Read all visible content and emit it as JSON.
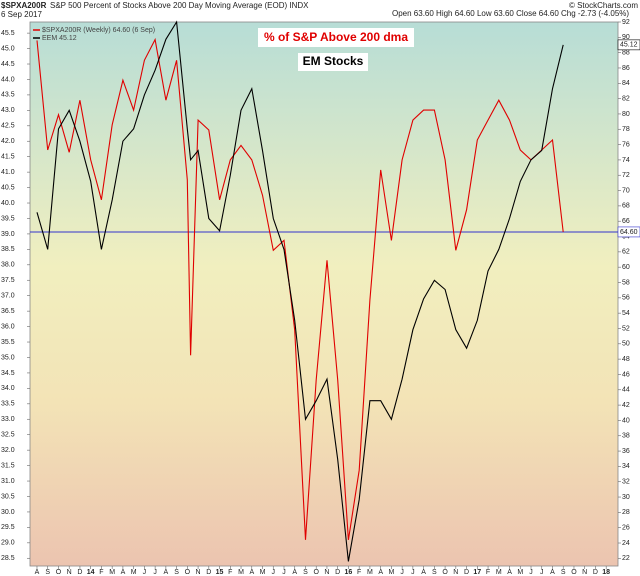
{
  "chart_data": {
    "type": "line",
    "symbol": "$SPXA200R",
    "title": "S&P 500 Percent of Stocks Above 200 Day Moving Average (EOD) INDX",
    "date": "6 Sep 2017",
    "ohlc": "Open 63.60  High 64.60  Low 63.60  Close 64.60  Chg -2.73 (-4.05%)",
    "credit": "© StockCharts.com",
    "annotations": [
      "% of S&P Above 200 dma",
      "EM Stocks"
    ],
    "xlim": [
      -0.65,
      54.1
    ],
    "xticks": [
      {
        "value": 0,
        "label": "A"
      },
      {
        "value": 1,
        "label": "S"
      },
      {
        "value": 2,
        "label": "O"
      },
      {
        "value": 3,
        "label": "N"
      },
      {
        "value": 4,
        "label": "D"
      },
      {
        "value": 5,
        "label": "14"
      },
      {
        "value": 6,
        "label": "F"
      },
      {
        "value": 7,
        "label": "M"
      },
      {
        "value": 8,
        "label": "A"
      },
      {
        "value": 9,
        "label": "M"
      },
      {
        "value": 10,
        "label": "J"
      },
      {
        "value": 11,
        "label": "J"
      },
      {
        "value": 12,
        "label": "A"
      },
      {
        "value": 13,
        "label": "S"
      },
      {
        "value": 14,
        "label": "O"
      },
      {
        "value": 15,
        "label": "N"
      },
      {
        "value": 16,
        "label": "D"
      },
      {
        "value": 17,
        "label": "15"
      },
      {
        "value": 18,
        "label": "F"
      },
      {
        "value": 19,
        "label": "M"
      },
      {
        "value": 20,
        "label": "A"
      },
      {
        "value": 21,
        "label": "M"
      },
      {
        "value": 22,
        "label": "J"
      },
      {
        "value": 23,
        "label": "J"
      },
      {
        "value": 24,
        "label": "A"
      },
      {
        "value": 25,
        "label": "S"
      },
      {
        "value": 26,
        "label": "O"
      },
      {
        "value": 27,
        "label": "N"
      },
      {
        "value": 28,
        "label": "D"
      },
      {
        "value": 29,
        "label": "16"
      },
      {
        "value": 30,
        "label": "F"
      },
      {
        "value": 31,
        "label": "M"
      },
      {
        "value": 32,
        "label": "A"
      },
      {
        "value": 33,
        "label": "M"
      },
      {
        "value": 34,
        "label": "J"
      },
      {
        "value": 35,
        "label": "J"
      },
      {
        "value": 36,
        "label": "A"
      },
      {
        "value": 37,
        "label": "S"
      },
      {
        "value": 38,
        "label": "O"
      },
      {
        "value": 39,
        "label": "N"
      },
      {
        "value": 40,
        "label": "D"
      },
      {
        "value": 41,
        "label": "17"
      },
      {
        "value": 42,
        "label": "F"
      },
      {
        "value": 43,
        "label": "M"
      },
      {
        "value": 44,
        "label": "A"
      },
      {
        "value": 45,
        "label": "M"
      },
      {
        "value": 46,
        "label": "J"
      },
      {
        "value": 47,
        "label": "J"
      },
      {
        "value": 48,
        "label": "A"
      },
      {
        "value": 49,
        "label": "S"
      },
      {
        "value": 50,
        "label": "O"
      },
      {
        "value": 51,
        "label": "N"
      },
      {
        "value": 52,
        "label": "D"
      },
      {
        "value": 53,
        "label": "18"
      }
    ],
    "ylim": [
      28.25,
      45.86
    ],
    "yticks": [
      28.5,
      {
        "value": 29,
        "label": "29.0"
      },
      29.5,
      {
        "value": 30,
        "label": "30.0"
      },
      30.5,
      {
        "value": 31,
        "label": "31.0"
      },
      31.5,
      {
        "value": 32,
        "label": "32.0"
      },
      32.5,
      {
        "value": 33,
        "label": "33.0"
      },
      33.5,
      {
        "value": 34,
        "label": "34.0"
      },
      34.5,
      {
        "value": 35,
        "label": "35.0"
      },
      35.5,
      {
        "value": 36,
        "label": "36.0"
      },
      36.5,
      {
        "value": 37,
        "label": "37.0"
      },
      37.5,
      {
        "value": 38,
        "label": "38.0"
      },
      38.5,
      {
        "value": 39,
        "label": "39.0"
      },
      39.5,
      {
        "value": 40,
        "label": "40.0"
      },
      40.5,
      {
        "value": 41,
        "label": "41.0"
      },
      41.5,
      {
        "value": 42,
        "label": "42.0"
      },
      42.5,
      {
        "value": 43,
        "label": "43.0"
      },
      43.5,
      {
        "value": 44,
        "label": "44.0"
      },
      44.5,
      {
        "value": 45,
        "label": "45.0"
      },
      45.5
    ],
    "y2lim": [
      21,
      92
    ],
    "y2ticks": [
      22,
      24,
      26,
      28,
      30,
      32,
      34,
      36,
      38,
      40,
      42,
      44,
      46,
      48,
      50,
      52,
      54,
      56,
      58,
      60,
      62,
      64,
      66,
      68,
      70,
      72,
      74,
      76,
      78,
      80,
      82,
      84,
      86,
      88,
      90,
      92
    ],
    "markers": [
      {
        "value": 64.6,
        "label": "64.60",
        "axis": "y2",
        "color": "#3333cc"
      },
      {
        "value": 45.12,
        "label": "45.12",
        "axis": "y",
        "color": "#000000"
      }
    ],
    "x": [
      0,
      1,
      2,
      3,
      4,
      5,
      6,
      7,
      8,
      9,
      10,
      11,
      12,
      13,
      14,
      14.3,
      15,
      16,
      17,
      18,
      19,
      20,
      21,
      22,
      23,
      24,
      25,
      26,
      27,
      28,
      29,
      30,
      31,
      32,
      33,
      34,
      35,
      36,
      37,
      38,
      39,
      40,
      41,
      42,
      43,
      44,
      45,
      46,
      47,
      48,
      49
    ],
    "series": [
      {
        "name": "$SPXA200R (Weekly) 64.60 (6 Sep)",
        "color": "#e00000",
        "axis": "y2",
        "values": [
          89.6,
          75.3,
          79.9,
          75,
          81.8,
          74,
          68.8,
          78.6,
          84.4,
          80.5,
          87,
          89.7,
          81.8,
          87,
          71.4,
          48.5,
          79.2,
          77.9,
          68.8,
          74,
          75.9,
          74,
          69.4,
          62.2,
          63.5,
          51.8,
          24.4,
          45.3,
          60.9,
          45.3,
          24.4,
          33.5,
          55.7,
          72.7,
          63.5,
          74,
          79.2,
          80.5,
          80.5,
          74,
          62.2,
          67.5,
          76.6,
          79.2,
          81.8,
          79.2,
          75.3,
          74,
          75.3,
          76.6,
          64.6
        ]
      },
      {
        "name": "EEM 45.12",
        "color": "#000000",
        "axis": "y",
        "values": [
          39.7,
          38.5,
          42.4,
          43,
          42,
          40.7,
          38.5,
          40.1,
          42,
          42.4,
          43.5,
          44.3,
          45.3,
          45.86,
          42.4,
          41.4,
          41.7,
          39.5,
          39.1,
          40.9,
          43,
          43.7,
          41.7,
          39.5,
          38.5,
          36.2,
          33,
          33.6,
          34.3,
          31.7,
          28.4,
          30.4,
          33.6,
          33.6,
          33,
          34.3,
          35.9,
          36.9,
          37.5,
          37.2,
          35.9,
          35.3,
          36.2,
          37.8,
          38.5,
          39.5,
          40.7,
          41.4,
          41.7,
          43.7,
          45.12
        ]
      }
    ]
  }
}
